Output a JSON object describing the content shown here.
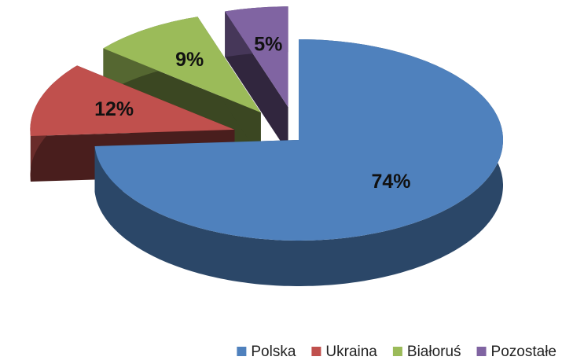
{
  "chart_data": {
    "type": "pie3d",
    "categories": [
      "Polska",
      "Ukraina",
      "Białoruś",
      "Pozostałe"
    ],
    "values": [
      74,
      12,
      9,
      5
    ],
    "value_labels": [
      "74%",
      "12%",
      "9%",
      "5%"
    ],
    "colors": [
      "#4f81bd",
      "#c0504d",
      "#9bbb59",
      "#8064a2"
    ],
    "legend": "bottom-right"
  }
}
